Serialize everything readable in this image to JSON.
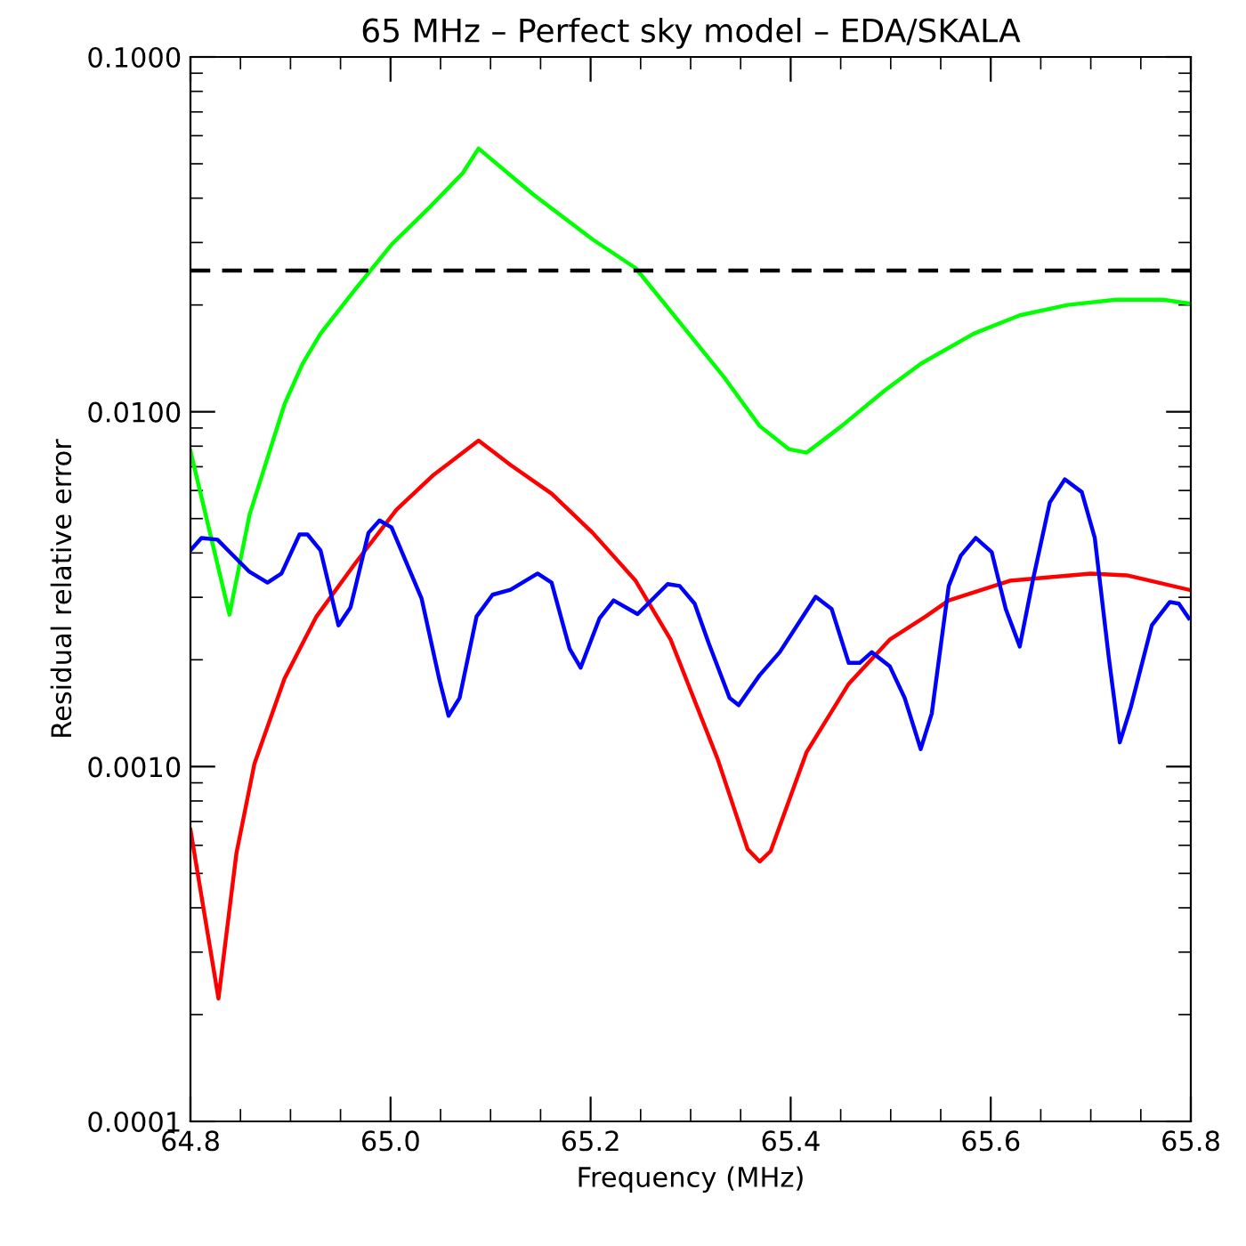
{
  "chart_data": {
    "type": "line",
    "title": "65 MHz – Perfect sky model – EDA/SKALA",
    "xlabel": "Frequency (MHz)",
    "ylabel": "Residual relative error",
    "log": "y",
    "xlim": [
      64.8,
      65.8
    ],
    "xticks": [
      {
        "value": 64.8,
        "label": "64.8"
      },
      {
        "value": 65.0,
        "label": "65.0"
      },
      {
        "value": 65.2,
        "label": "65.2"
      },
      {
        "value": 65.4,
        "label": "65.4"
      },
      {
        "value": 65.6,
        "label": "65.6"
      },
      {
        "value": 65.8,
        "label": "65.8"
      }
    ],
    "ylim": [
      0.0001,
      0.1
    ],
    "yticks": [
      {
        "value": 0.0001,
        "label": "0.0001"
      },
      {
        "value": 0.001,
        "label": "0.0010"
      },
      {
        "value": 0.01,
        "label": "0.0100"
      },
      {
        "value": 0.1,
        "label": "0.1000"
      }
    ],
    "grid": false,
    "legend": false,
    "line_style": "solid",
    "marker": "none",
    "ref_lines": [
      {
        "axis": "y",
        "value": 0.025,
        "color": "#000000",
        "line_style": "dashed"
      }
    ],
    "series": [
      {
        "color": "#00ff00",
        "x": [
          64.8,
          64.839,
          64.859,
          64.877,
          64.894,
          64.912,
          64.93,
          64.965,
          65.001,
          65.037,
          65.072,
          65.088,
          65.143,
          65.202,
          65.245,
          65.291,
          65.334,
          65.369,
          65.398,
          65.416,
          65.451,
          65.494,
          65.53,
          65.583,
          65.629,
          65.677,
          65.725,
          65.772,
          65.798
        ],
        "values": [
          0.00776,
          0.00268,
          0.00512,
          0.00741,
          0.0105,
          0.01365,
          0.0166,
          0.0222,
          0.0296,
          0.0372,
          0.047,
          0.0552,
          0.0409,
          0.0306,
          0.0254,
          0.0176,
          0.01245,
          0.00912,
          0.00785,
          0.00767,
          0.00912,
          0.01148,
          0.01365,
          0.0166,
          0.0187,
          0.02,
          0.0207,
          0.0207,
          0.0202
        ]
      },
      {
        "color": "#ff0000",
        "x": [
          64.8,
          64.828,
          64.846,
          64.864,
          64.894,
          64.926,
          64.965,
          65.006,
          65.042,
          65.088,
          65.12,
          65.161,
          65.202,
          65.245,
          65.28,
          65.327,
          65.357,
          65.369,
          65.38,
          65.416,
          65.458,
          65.499,
          65.535,
          65.558,
          65.619,
          65.7,
          65.736,
          65.798
        ],
        "values": [
          0.000664,
          0.000222,
          0.000571,
          0.00102,
          0.00177,
          0.00265,
          0.00375,
          0.0053,
          0.0066,
          0.0083,
          0.00708,
          0.00588,
          0.00456,
          0.00334,
          0.00228,
          0.00105,
          0.000585,
          0.00054,
          0.000578,
          0.0011,
          0.00171,
          0.00228,
          0.00265,
          0.00294,
          0.00334,
          0.0035,
          0.00346,
          0.00315
        ]
      },
      {
        "color": "#0000ff",
        "x": [
          64.8,
          64.811,
          64.827,
          64.859,
          64.877,
          64.891,
          64.909,
          64.917,
          64.93,
          64.948,
          64.96,
          64.978,
          64.989,
          65.001,
          65.031,
          65.049,
          65.058,
          65.069,
          65.086,
          65.102,
          65.12,
          65.147,
          65.161,
          65.179,
          65.19,
          65.209,
          65.223,
          65.247,
          65.277,
          65.289,
          65.304,
          65.318,
          65.339,
          65.348,
          65.369,
          65.389,
          65.425,
          65.441,
          65.458,
          65.469,
          65.481,
          65.499,
          65.514,
          65.53,
          65.541,
          65.558,
          65.57,
          65.585,
          65.601,
          65.615,
          65.629,
          65.642,
          65.659,
          65.674,
          65.691,
          65.704,
          65.718,
          65.729,
          65.74,
          65.761,
          65.779,
          65.788,
          65.798
        ],
        "values": [
          0.00407,
          0.00441,
          0.00436,
          0.00354,
          0.0033,
          0.0035,
          0.00451,
          0.00451,
          0.00407,
          0.0025,
          0.00281,
          0.00456,
          0.00494,
          0.00472,
          0.00298,
          0.00175,
          0.00139,
          0.00156,
          0.00265,
          0.00305,
          0.00315,
          0.0035,
          0.0033,
          0.00215,
          0.0019,
          0.00262,
          0.00294,
          0.00269,
          0.00327,
          0.00323,
          0.00288,
          0.00223,
          0.00156,
          0.00149,
          0.00181,
          0.0021,
          0.00301,
          0.00278,
          0.00196,
          0.00196,
          0.0021,
          0.00192,
          0.00156,
          0.00112,
          0.00141,
          0.00323,
          0.00393,
          0.00441,
          0.00402,
          0.00278,
          0.00218,
          0.00334,
          0.00555,
          0.00645,
          0.00594,
          0.00441,
          0.00203,
          0.00117,
          0.00147,
          0.0025,
          0.00291,
          0.00288,
          0.00262
        ]
      }
    ]
  }
}
